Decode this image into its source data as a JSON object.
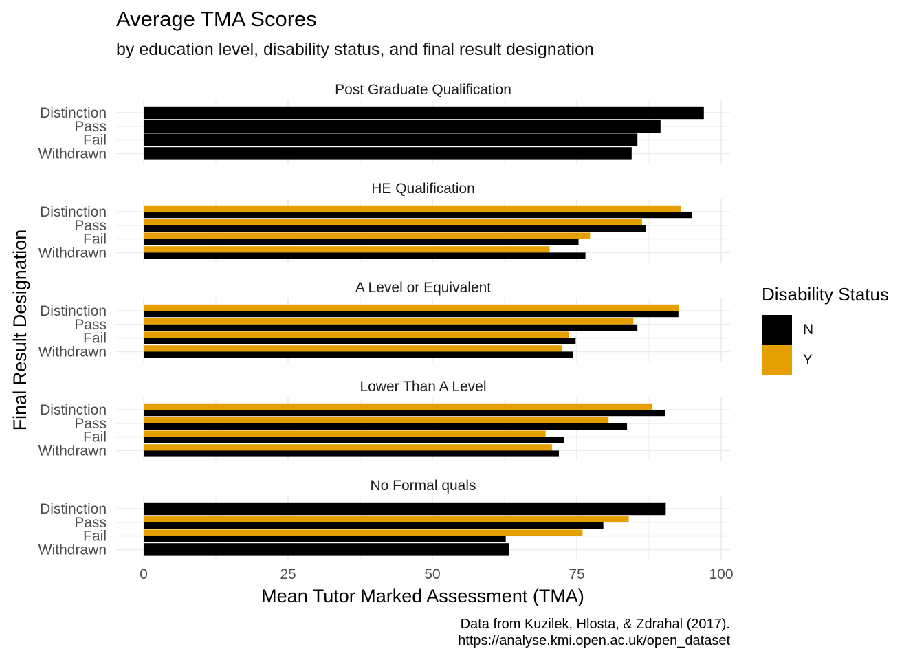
{
  "chart_data": {
    "type": "bar",
    "orientation": "horizontal",
    "title": "Average TMA Scores",
    "subtitle": "by education level, disability status, and final result designation",
    "xlabel": "Mean Tutor Marked Assessment (TMA)",
    "ylabel": "Final Result Designation",
    "xlim": [
      0,
      100
    ],
    "x_ticks": [
      "0",
      "25",
      "50",
      "75",
      "100"
    ],
    "x_tick_values": [
      0,
      25,
      50,
      75,
      100
    ],
    "categories": [
      "Distinction",
      "Pass",
      "Fail",
      "Withdrawn"
    ],
    "grid": true,
    "legend": {
      "title": "Disability Status",
      "position": "right",
      "entries": [
        {
          "label": "N",
          "color": "#000000"
        },
        {
          "label": "Y",
          "color": "#E69F00"
        }
      ]
    },
    "caption": [
      "Data from Kuzilek, Hlosta, & Zdrahal (2017).",
      "https://analyse.kmi.open.ac.uk/open_dataset"
    ],
    "facets": [
      {
        "name": "Post Graduate Qualification",
        "series": [
          {
            "name": "N",
            "values": [
              97,
              89.5,
              85.5,
              84.5
            ]
          },
          {
            "name": "Y",
            "values": [
              null,
              null,
              null,
              null
            ]
          }
        ]
      },
      {
        "name": "HE Qualification",
        "series": [
          {
            "name": "N",
            "values": [
              95,
              87,
              75.3,
              76.5
            ]
          },
          {
            "name": "Y",
            "values": [
              93,
              86.3,
              77.3,
              70.3
            ]
          }
        ]
      },
      {
        "name": "A Level or Equivalent",
        "series": [
          {
            "name": "N",
            "values": [
              92.6,
              85.5,
              74.8,
              74.4
            ]
          },
          {
            "name": "Y",
            "values": [
              92.7,
              84.8,
              73.6,
              72.5
            ]
          }
        ]
      },
      {
        "name": "Lower Than A Level",
        "series": [
          {
            "name": "N",
            "values": [
              90.3,
              83.7,
              72.8,
              71.9
            ]
          },
          {
            "name": "Y",
            "values": [
              88.1,
              80.5,
              69.6,
              70.7
            ]
          }
        ]
      },
      {
        "name": "No Formal quals",
        "series": [
          {
            "name": "N",
            "values": [
              90.4,
              79.6,
              62.7,
              63.3
            ]
          },
          {
            "name": "Y",
            "values": [
              null,
              84,
              76,
              null
            ]
          }
        ]
      }
    ]
  }
}
